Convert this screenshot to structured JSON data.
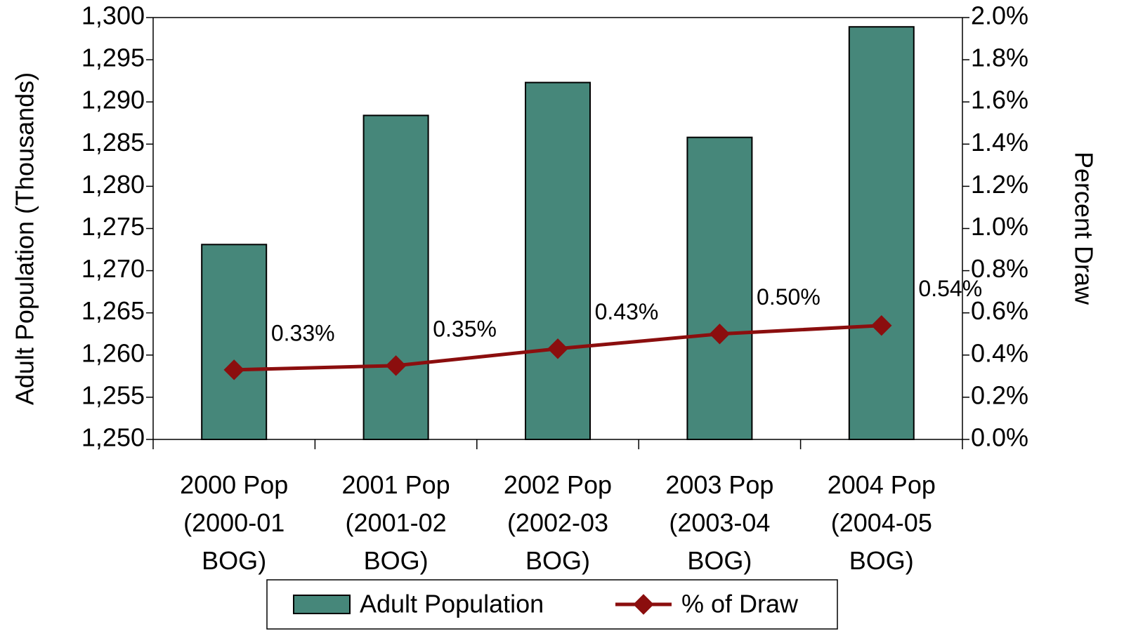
{
  "chart_data": {
    "type": "bar",
    "y_label": "Adult Population     (Thousands)",
    "y2_label": "Percent Draw",
    "categories": [
      "2000 Pop (2000-01 BOG)",
      "2001 Pop (2001-02 BOG)",
      "2002 Pop (2002-03 BOG)",
      "2003 Pop (2003-04 BOG)",
      "2004 Pop (2004-05 BOG)"
    ],
    "series": [
      {
        "name": "Adult Population",
        "type": "bar",
        "color": "#46877a",
        "values": [
          1273.1,
          1288.4,
          1292.3,
          1285.8,
          1298.9
        ]
      },
      {
        "name": "% of Draw",
        "type": "line",
        "axis": "y2",
        "color": "#8b0e0e",
        "values": [
          0.33,
          0.35,
          0.43,
          0.5,
          0.54
        ],
        "value_labels": [
          "0.33%",
          "0.35%",
          "0.43%",
          "0.50%",
          "0.54%"
        ]
      }
    ],
    "ylim": [
      1250,
      1300
    ],
    "yticks": [
      {
        "value": 1250,
        "label": "1,250"
      },
      {
        "value": 1255,
        "label": "1,255"
      },
      {
        "value": 1260,
        "label": "1,260"
      },
      {
        "value": 1265,
        "label": "1,265"
      },
      {
        "value": 1270,
        "label": "1,270"
      },
      {
        "value": 1275,
        "label": "1,275"
      },
      {
        "value": 1280,
        "label": "1,280"
      },
      {
        "value": 1285,
        "label": "1,285"
      },
      {
        "value": 1290,
        "label": "1,290"
      },
      {
        "value": 1295,
        "label": "1,295"
      },
      {
        "value": 1300,
        "label": "1,300"
      }
    ],
    "y2lim": [
      0,
      2.0
    ],
    "y2ticks": [
      {
        "value": 0,
        "label": "0.0%"
      },
      {
        "value": 0.2,
        "label": "0.2%"
      },
      {
        "value": 0.4,
        "label": "0.4%"
      },
      {
        "value": 0.6,
        "label": "0.6%"
      },
      {
        "value": 0.8,
        "label": "0.8%"
      },
      {
        "value": 1.0,
        "label": "1.0%"
      },
      {
        "value": 1.2,
        "label": "1.2%"
      },
      {
        "value": 1.4,
        "label": "1.4%"
      },
      {
        "value": 1.6,
        "label": "1.6%"
      },
      {
        "value": 1.8,
        "label": "1.8%"
      },
      {
        "value": 2.0,
        "label": "2.0%"
      }
    ],
    "grid": false,
    "legend": "bottom"
  }
}
